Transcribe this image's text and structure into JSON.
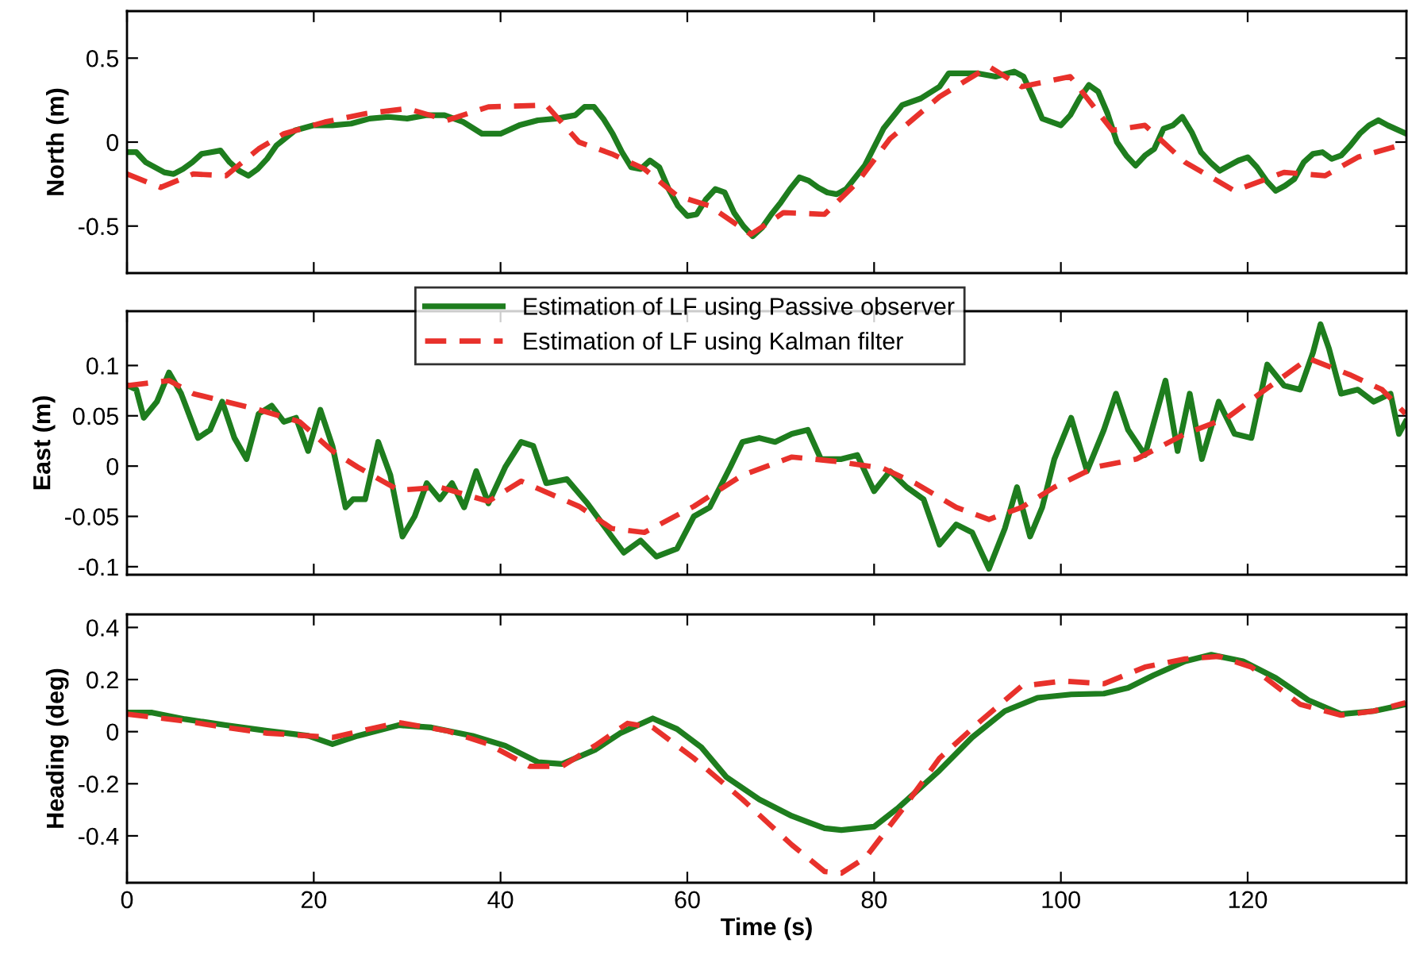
{
  "chart_data": [
    {
      "type": "line",
      "ylabel": "North (m)",
      "xlim": [
        0,
        137
      ],
      "xticks": [
        0,
        20,
        40,
        60,
        80,
        100,
        120
      ],
      "ylim": [
        -0.78,
        0.78
      ],
      "yticks": [
        -0.5,
        0,
        0.5
      ],
      "grid": false,
      "legend": false,
      "tick_labels": "y",
      "series": [
        {
          "color": "#1e7d1e",
          "line_style": "solid",
          "x": [
            0,
            1,
            2,
            4,
            5,
            6,
            7,
            8,
            9,
            10,
            11,
            12,
            13,
            14,
            15,
            16,
            18,
            20,
            22,
            24,
            26,
            28,
            30,
            32,
            34,
            36,
            38,
            40,
            42,
            44,
            46,
            48,
            49,
            50,
            51,
            52,
            53,
            54,
            55,
            56,
            57,
            58,
            59,
            60,
            61,
            62,
            63,
            64,
            65,
            66,
            67,
            68,
            69,
            70,
            71,
            72,
            73,
            74,
            75,
            76,
            77,
            79,
            81,
            83,
            85,
            87,
            88,
            89,
            91,
            93,
            95,
            96,
            97,
            98,
            99,
            100,
            101,
            102,
            103,
            104,
            105,
            106,
            107,
            108,
            109,
            110,
            111,
            112,
            113,
            114,
            115,
            116,
            117,
            118,
            119,
            120,
            121,
            122,
            123,
            124,
            125,
            126,
            127,
            128,
            129,
            130,
            131,
            132,
            133,
            134,
            135,
            137
          ],
          "values": [
            -0.06,
            -0.06,
            -0.12,
            -0.18,
            -0.19,
            -0.16,
            -0.12,
            -0.07,
            -0.06,
            -0.05,
            -0.12,
            -0.17,
            -0.2,
            -0.16,
            -0.1,
            -0.02,
            0.07,
            0.1,
            0.1,
            0.11,
            0.14,
            0.15,
            0.14,
            0.16,
            0.16,
            0.12,
            0.05,
            0.05,
            0.1,
            0.13,
            0.14,
            0.16,
            0.21,
            0.21,
            0.14,
            0.05,
            -0.06,
            -0.15,
            -0.16,
            -0.11,
            -0.15,
            -0.28,
            -0.38,
            -0.44,
            -0.43,
            -0.34,
            -0.28,
            -0.3,
            -0.42,
            -0.5,
            -0.56,
            -0.51,
            -0.43,
            -0.36,
            -0.28,
            -0.21,
            -0.23,
            -0.27,
            -0.3,
            -0.31,
            -0.28,
            -0.14,
            0.08,
            0.22,
            0.26,
            0.33,
            0.41,
            0.41,
            0.41,
            0.39,
            0.42,
            0.39,
            0.27,
            0.14,
            0.12,
            0.1,
            0.16,
            0.26,
            0.34,
            0.3,
            0.17,
            0.0,
            -0.08,
            -0.14,
            -0.08,
            -0.04,
            0.08,
            0.1,
            0.15,
            0.06,
            -0.06,
            -0.12,
            -0.17,
            -0.14,
            -0.11,
            -0.09,
            -0.15,
            -0.23,
            -0.29,
            -0.26,
            -0.22,
            -0.12,
            -0.07,
            -0.06,
            -0.1,
            -0.08,
            -0.02,
            0.05,
            0.1,
            0.13,
            0.1,
            0.05
          ]
        },
        {
          "color": "#e8312b",
          "line_style": "dashed",
          "x": [
            0,
            3.6,
            7.1,
            10.6,
            14.1,
            16.8,
            21.2,
            25.6,
            30,
            34.3,
            38.7,
            44.9,
            48.4,
            51.9,
            55.4,
            58.9,
            62.4,
            66.8,
            70.3,
            74.7,
            78.2,
            81.7,
            87,
            92.3,
            95.8,
            101,
            105.5,
            109,
            113.3,
            118.6,
            123.9,
            128.3,
            131.8,
            136.9
          ],
          "values": [
            -0.19,
            -0.27,
            -0.19,
            -0.2,
            -0.04,
            0.05,
            0.12,
            0.17,
            0.2,
            0.13,
            0.21,
            0.22,
            0,
            -0.07,
            -0.16,
            -0.32,
            -0.38,
            -0.55,
            -0.42,
            -0.43,
            -0.24,
            0.02,
            0.27,
            0.45,
            0.33,
            0.39,
            0.07,
            0.1,
            -0.12,
            -0.29,
            -0.18,
            -0.2,
            -0.09,
            -0.01
          ]
        }
      ]
    },
    {
      "type": "line",
      "ylabel": "East (m)",
      "xlim": [
        0,
        137
      ],
      "xticks": [
        0,
        20,
        40,
        60,
        80,
        100,
        120
      ],
      "ylim": [
        -0.108,
        0.154
      ],
      "yticks": [
        -0.1,
        -0.05,
        0,
        0.05,
        0.1
      ],
      "grid": false,
      "legend": "top",
      "tick_labels": "y",
      "series": [
        {
          "name": "Estimation of LF using Passive observer",
          "color": "#1e7d1e",
          "line_style": "solid",
          "x": [
            0.1,
            1.0,
            1.8,
            3.2,
            4.5,
            5.8,
            7.6,
            8.9,
            10.2,
            11.5,
            12.8,
            14.1,
            15.5,
            16.8,
            18.1,
            19.4,
            20.7,
            22.0,
            23.4,
            24.2,
            25.5,
            26.9,
            28.2,
            29.5,
            30.8,
            32.1,
            33.5,
            34.8,
            36.1,
            37.4,
            38.7,
            40.5,
            42.2,
            43.5,
            44.9,
            47.1,
            49.3,
            51.9,
            53.2,
            55.0,
            56.7,
            58.9,
            60.7,
            62.4,
            64.6,
            65.9,
            67.7,
            69.4,
            71.2,
            72.9,
            74.3,
            76.5,
            78.2,
            80.0,
            81.7,
            83.5,
            85.3,
            87.0,
            88.8,
            90.5,
            92.3,
            94.0,
            95.3,
            96.7,
            98.0,
            99.3,
            101.1,
            102.8,
            104.6,
            105.9,
            107.2,
            109.0,
            111.2,
            112.5,
            113.8,
            115.1,
            116.9,
            118.6,
            120.4,
            122.1,
            123.9,
            125.6,
            127.0,
            127.8,
            128.7,
            130.0,
            131.8,
            133.5,
            135.3,
            136.2,
            136.9
          ],
          "values": [
            0.08,
            0.076,
            0.048,
            0.064,
            0.093,
            0.072,
            0.028,
            0.036,
            0.064,
            0.028,
            0.007,
            0.052,
            0.06,
            0.044,
            0.048,
            0.015,
            0.056,
            0.02,
            -0.041,
            -0.033,
            -0.033,
            0.024,
            -0.009,
            -0.07,
            -0.05,
            -0.017,
            -0.033,
            -0.017,
            -0.041,
            -0.005,
            -0.037,
            -0.001,
            0.024,
            0.02,
            -0.017,
            -0.013,
            -0.037,
            -0.07,
            -0.086,
            -0.074,
            -0.09,
            -0.082,
            -0.05,
            -0.041,
            -0.001,
            0.024,
            0.028,
            0.024,
            0.032,
            0.036,
            0.007,
            0.007,
            0.011,
            -0.025,
            -0.005,
            -0.021,
            -0.033,
            -0.078,
            -0.058,
            -0.066,
            -0.102,
            -0.062,
            -0.021,
            -0.07,
            -0.041,
            0.007,
            0.048,
            -0.005,
            0.036,
            0.072,
            0.036,
            0.011,
            0.085,
            0.015,
            0.072,
            0.007,
            0.064,
            0.032,
            0.028,
            0.101,
            0.08,
            0.076,
            0.113,
            0.141,
            0.117,
            0.072,
            0.076,
            0.064,
            0.072,
            0.032,
            0.044
          ]
        },
        {
          "name": "Estimation of LF using Kalman filter",
          "color": "#e8312b",
          "line_style": "dashed",
          "x": [
            0,
            4.5,
            7.1,
            10.6,
            14.1,
            18.5,
            22.0,
            24.7,
            29.1,
            33.5,
            38.7,
            42.2,
            48.4,
            51.9,
            55.4,
            60.7,
            65.9,
            71.2,
            75.6,
            80.9,
            84.4,
            88.8,
            92.3,
            95.8,
            99.3,
            103.7,
            108.1,
            113.3,
            117.8,
            121.3,
            126.5,
            130.9,
            134.4,
            136.9
          ],
          "values": [
            0.08,
            0.085,
            0.072,
            0.064,
            0.056,
            0.044,
            0.015,
            -0.001,
            -0.024,
            -0.021,
            -0.035,
            -0.015,
            -0.04,
            -0.062,
            -0.066,
            -0.04,
            -0.009,
            0.009,
            0.005,
            -0.002,
            -0.017,
            -0.041,
            -0.053,
            -0.041,
            -0.021,
            -0.001,
            0.007,
            0.032,
            0.048,
            0.072,
            0.107,
            0.091,
            0.076,
            0.052
          ]
        }
      ]
    },
    {
      "type": "line",
      "ylabel": "Heading (deg)",
      "xlabel": "Time (s)",
      "xlim": [
        0,
        137
      ],
      "xticks": [
        0,
        20,
        40,
        60,
        80,
        100,
        120
      ],
      "ylim": [
        -0.58,
        0.45
      ],
      "yticks": [
        -0.4,
        -0.2,
        0,
        0.2,
        0.4
      ],
      "grid": false,
      "legend": false,
      "series": [
        {
          "color": "#1e7d1e",
          "line_style": "solid",
          "x": [
            0,
            2.7,
            6.2,
            10.6,
            15.0,
            19.4,
            22.0,
            24.7,
            29.1,
            32.6,
            37.0,
            40.5,
            44.0,
            46.6,
            50.1,
            52.8,
            56.3,
            58.9,
            61.5,
            64.2,
            67.7,
            71.2,
            74.7,
            76.5,
            80.0,
            82.6,
            87.0,
            90.5,
            94.0,
            97.5,
            101.1,
            104.6,
            107.2,
            109.9,
            113.3,
            116.1,
            119.5,
            123.0,
            126.5,
            130.0,
            133.5,
            136.9
          ],
          "values": [
            0.073,
            0.073,
            0.048,
            0.025,
            0.003,
            -0.016,
            -0.048,
            -0.016,
            0.025,
            0.016,
            -0.016,
            -0.054,
            -0.117,
            -0.124,
            -0.07,
            -0.006,
            0.051,
            0.01,
            -0.06,
            -0.175,
            -0.26,
            -0.324,
            -0.371,
            -0.378,
            -0.365,
            -0.292,
            -0.149,
            -0.022,
            0.079,
            0.13,
            0.143,
            0.146,
            0.168,
            0.216,
            0.27,
            0.295,
            0.27,
            0.206,
            0.121,
            0.067,
            0.079,
            0.105
          ]
        },
        {
          "color": "#e8312b",
          "line_style": "dashed",
          "x": [
            0,
            6.2,
            10.6,
            15.0,
            22.0,
            29.1,
            34.3,
            38.7,
            43.1,
            46.6,
            50.1,
            53.6,
            56.3,
            60.7,
            65.9,
            71.2,
            74.7,
            76.5,
            79.1,
            83.5,
            87.0,
            91.4,
            95.8,
            100.2,
            104.6,
            109.0,
            113.3,
            116.9,
            120.4,
            125.6,
            130.0,
            133.5,
            136.9
          ],
          "values": [
            0.067,
            0.041,
            0.016,
            -0.006,
            -0.022,
            0.035,
            0.003,
            -0.048,
            -0.133,
            -0.133,
            -0.054,
            0.032,
            0.016,
            -0.102,
            -0.26,
            -0.435,
            -0.537,
            -0.543,
            -0.483,
            -0.276,
            -0.102,
            0.041,
            0.175,
            0.194,
            0.184,
            0.248,
            0.279,
            0.289,
            0.248,
            0.105,
            0.063,
            0.079,
            0.111
          ]
        }
      ]
    }
  ]
}
